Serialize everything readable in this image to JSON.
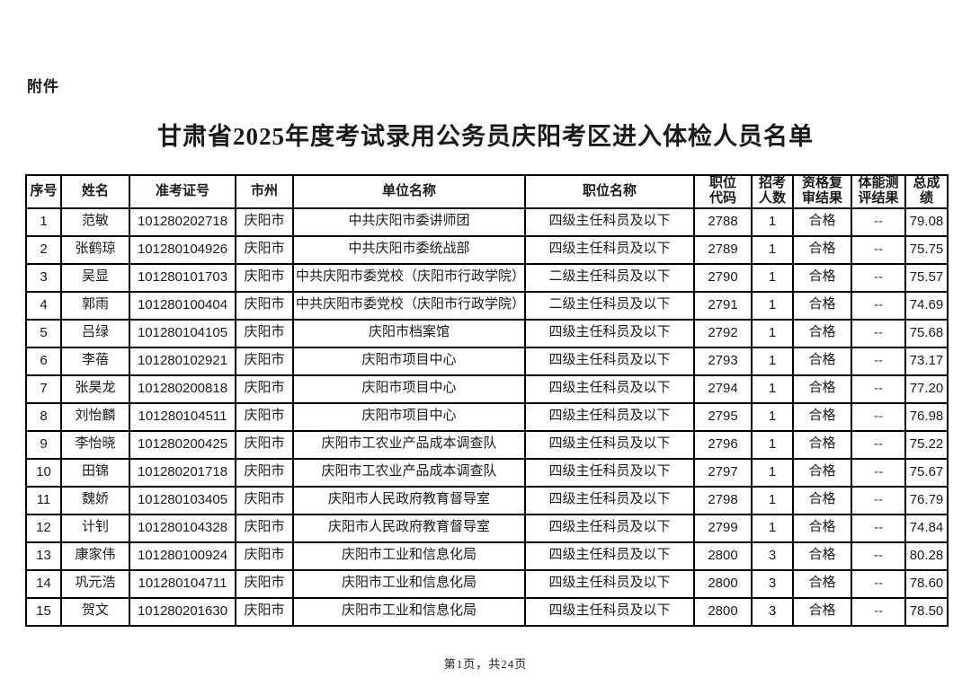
{
  "attachment_label": "附件",
  "title": "甘肃省2025年度考试录用公务员庆阳考区进入体检人员名单",
  "table": {
    "headers": [
      "序号",
      "姓名",
      "准考证号",
      "市州",
      "单位名称",
      "职位名称",
      "职位\n代码",
      "招考\n人数",
      "资格复\n审结果",
      "体能测\n评结果",
      "总成绩"
    ],
    "rows": [
      [
        "1",
        "范敏",
        "101280202718",
        "庆阳市",
        "中共庆阳市委讲师团",
        "四级主任科员及以下",
        "2788",
        "1",
        "合格",
        "--",
        "79.08"
      ],
      [
        "2",
        "张鹤琼",
        "101280104926",
        "庆阳市",
        "中共庆阳市委统战部",
        "四级主任科员及以下",
        "2789",
        "1",
        "合格",
        "--",
        "75.75"
      ],
      [
        "3",
        "吴显",
        "101280101703",
        "庆阳市",
        "中共庆阳市委党校（庆阳市行政学院）",
        "二级主任科员及以下",
        "2790",
        "1",
        "合格",
        "--",
        "75.57"
      ],
      [
        "4",
        "郭雨",
        "101280100404",
        "庆阳市",
        "中共庆阳市委党校（庆阳市行政学院）",
        "二级主任科员及以下",
        "2791",
        "1",
        "合格",
        "--",
        "74.69"
      ],
      [
        "5",
        "吕绿",
        "101280104105",
        "庆阳市",
        "庆阳市档案馆",
        "四级主任科员及以下",
        "2792",
        "1",
        "合格",
        "--",
        "75.68"
      ],
      [
        "6",
        "李蓓",
        "101280102921",
        "庆阳市",
        "庆阳市项目中心",
        "四级主任科员及以下",
        "2793",
        "1",
        "合格",
        "--",
        "73.17"
      ],
      [
        "7",
        "张昊龙",
        "101280200818",
        "庆阳市",
        "庆阳市项目中心",
        "四级主任科员及以下",
        "2794",
        "1",
        "合格",
        "--",
        "77.20"
      ],
      [
        "8",
        "刘怡麟",
        "101280104511",
        "庆阳市",
        "庆阳市项目中心",
        "四级主任科员及以下",
        "2795",
        "1",
        "合格",
        "--",
        "76.98"
      ],
      [
        "9",
        "李怡晓",
        "101280200425",
        "庆阳市",
        "庆阳市工农业产品成本调查队",
        "四级主任科员及以下",
        "2796",
        "1",
        "合格",
        "--",
        "75.22"
      ],
      [
        "10",
        "田锦",
        "101280201718",
        "庆阳市",
        "庆阳市工农业产品成本调查队",
        "四级主任科员及以下",
        "2797",
        "1",
        "合格",
        "--",
        "75.67"
      ],
      [
        "11",
        "魏娇",
        "101280103405",
        "庆阳市",
        "庆阳市人民政府教育督导室",
        "四级主任科员及以下",
        "2798",
        "1",
        "合格",
        "--",
        "76.79"
      ],
      [
        "12",
        "计钊",
        "101280104328",
        "庆阳市",
        "庆阳市人民政府教育督导室",
        "四级主任科员及以下",
        "2799",
        "1",
        "合格",
        "--",
        "74.84"
      ],
      [
        "13",
        "康家伟",
        "101280100924",
        "庆阳市",
        "庆阳市工业和信息化局",
        "四级主任科员及以下",
        "2800",
        "3",
        "合格",
        "--",
        "80.28"
      ],
      [
        "14",
        "巩元浩",
        "101280104711",
        "庆阳市",
        "庆阳市工业和信息化局",
        "四级主任科员及以下",
        "2800",
        "3",
        "合格",
        "--",
        "78.60"
      ],
      [
        "15",
        "贺文",
        "101280201630",
        "庆阳市",
        "庆阳市工业和信息化局",
        "四级主任科员及以下",
        "2800",
        "3",
        "合格",
        "--",
        "78.50"
      ]
    ]
  },
  "footer": {
    "page_indicator": "第1页，共24页"
  }
}
